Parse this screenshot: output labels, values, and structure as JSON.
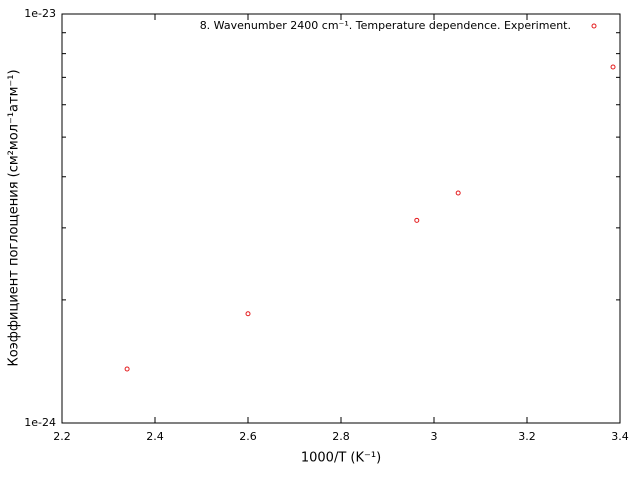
{
  "chart_data": {
    "type": "scatter",
    "x_label": "1000/T (K⁻¹)",
    "y_label": "Коэффициент поглощения (см²мол⁻¹атм⁻¹)",
    "log_y": true,
    "xlim": [
      2.2,
      3.4
    ],
    "xticks": [
      2.2,
      2.4,
      2.6,
      2.8,
      3,
      3.2,
      3.4
    ],
    "ylim": [
      1e-24,
      1e-23
    ],
    "yticks": [
      1e-24,
      1e-23
    ],
    "yminorticks": [
      2e-24,
      3e-24,
      4e-24,
      5e-24,
      6e-24,
      7e-24,
      8e-24,
      9e-24
    ],
    "legend": "top-right",
    "series": [
      {
        "name": "8. Wavenumber 2400 cm⁻¹. Temperature dependence. Experiment.",
        "color": "#e41a1c",
        "x": [
          2.34,
          2.6,
          2.963,
          3.052,
          3.385
        ],
        "values": [
          1.355e-24,
          1.85e-24,
          3.13e-24,
          3.65e-24,
          7.42e-24
        ]
      }
    ]
  }
}
